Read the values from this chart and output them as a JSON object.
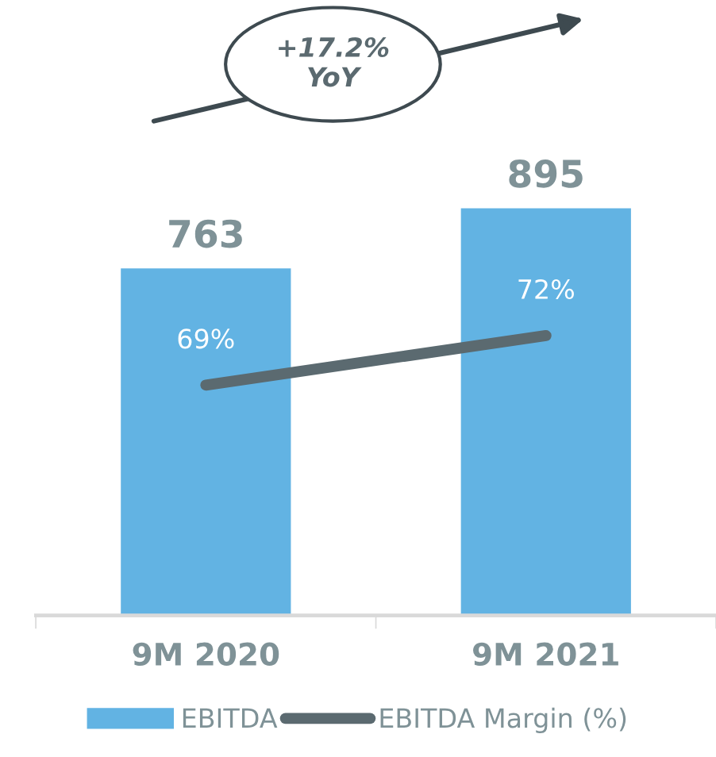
{
  "chart_data": {
    "type": "bar",
    "categories": [
      "9M 2020",
      "9M 2021"
    ],
    "series": [
      {
        "name": "EBITDA",
        "color": "#62b3e3",
        "values": [
          763,
          895
        ],
        "value_labels": [
          "763",
          "895"
        ]
      },
      {
        "name": "EBITDA Margin (%)",
        "type": "line",
        "axis": "y2",
        "color": "#5b6a70",
        "values": [
          69,
          72
        ],
        "value_labels": [
          "69%",
          "72%"
        ]
      }
    ],
    "annotations": [
      "+17.2%\nYoY"
    ],
    "grid": false,
    "legend": "bottom",
    "marker": "none",
    "line_style": "solid",
    "tick_labels": "x"
  }
}
